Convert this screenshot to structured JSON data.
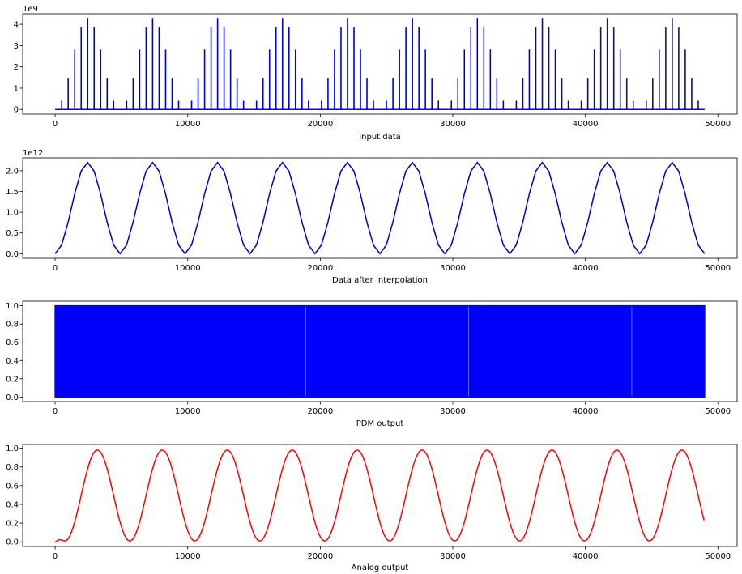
{
  "chart_data": [
    {
      "id": "input",
      "type": "line",
      "style": "spikes",
      "xlabel": "Input data",
      "ylabel": "",
      "offset_text": "1e9",
      "color": "#0000ff",
      "xlim": [
        -2450,
        51450
      ],
      "ylim": [
        -0.22,
        4.5
      ],
      "xticks": [
        0,
        10000,
        20000,
        30000,
        40000,
        50000
      ],
      "xtick_labels": [
        "0",
        "10000",
        "20000",
        "30000",
        "40000",
        "50000"
      ],
      "yticks": [
        0,
        1,
        2,
        3,
        4
      ],
      "ytick_labels": [
        "0",
        "1",
        "2",
        "3",
        "4"
      ],
      "sine": {
        "amplitude": 2.15,
        "center": 2.15,
        "period": 4900,
        "phase_x": 1225
      },
      "spike_step": 490,
      "x_max": 49000
    },
    {
      "id": "interp",
      "type": "line",
      "style": "polyline",
      "xlabel": "Data after Interpolation",
      "ylabel": "",
      "offset_text": "1e12",
      "color": "#0000cc",
      "xlim": [
        -2450,
        51450
      ],
      "ylim": [
        -0.11,
        2.31
      ],
      "xticks": [
        0,
        10000,
        20000,
        30000,
        40000,
        50000
      ],
      "xtick_labels": [
        "0",
        "10000",
        "20000",
        "30000",
        "40000",
        "50000"
      ],
      "yticks": [
        0,
        0.5,
        1.0,
        1.5,
        2.0
      ],
      "ytick_labels": [
        "0.0",
        "0.5",
        "1.0",
        "1.5",
        "2.0"
      ],
      "sine": {
        "amplitude": 1.1,
        "center": 1.1,
        "period": 4900,
        "phase_x": 1225
      },
      "sample_step": 490,
      "x_max": 49000
    },
    {
      "id": "pdm",
      "type": "area",
      "style": "pdm",
      "xlabel": "PDM output",
      "ylabel": "",
      "offset_text": "",
      "color": "#0000ff",
      "xlim": [
        -2450,
        51450
      ],
      "ylim": [
        -0.05,
        1.05
      ],
      "xticks": [
        0,
        10000,
        20000,
        30000,
        40000,
        50000
      ],
      "xtick_labels": [
        "0",
        "10000",
        "20000",
        "30000",
        "40000",
        "50000"
      ],
      "yticks": [
        0,
        0.2,
        0.4,
        0.6,
        0.8,
        1.0
      ],
      "ytick_labels": [
        "0.0",
        "0.2",
        "0.4",
        "0.6",
        "0.8",
        "1.0"
      ],
      "x_range": [
        0,
        49000
      ],
      "values": [
        0,
        1
      ]
    },
    {
      "id": "analog",
      "type": "line",
      "style": "smooth",
      "xlabel": "Analog output",
      "ylabel": "",
      "offset_text": "",
      "color": "#ff0000",
      "xlim": [
        -2450,
        51450
      ],
      "ylim": [
        -0.05,
        1.04
      ],
      "xticks": [
        0,
        10000,
        20000,
        30000,
        40000,
        50000
      ],
      "xtick_labels": [
        "0",
        "10000",
        "20000",
        "30000",
        "40000",
        "50000"
      ],
      "yticks": [
        0,
        0.2,
        0.4,
        0.6,
        0.8,
        1.0
      ],
      "ytick_labels": [
        "0.0",
        "0.2",
        "0.4",
        "0.6",
        "0.8",
        "1.0"
      ],
      "sine": {
        "amplitude": 0.485,
        "center": 0.495,
        "period": 4900,
        "phase_x": 1960
      },
      "x_max": 49000,
      "start_value": 0.0
    }
  ]
}
